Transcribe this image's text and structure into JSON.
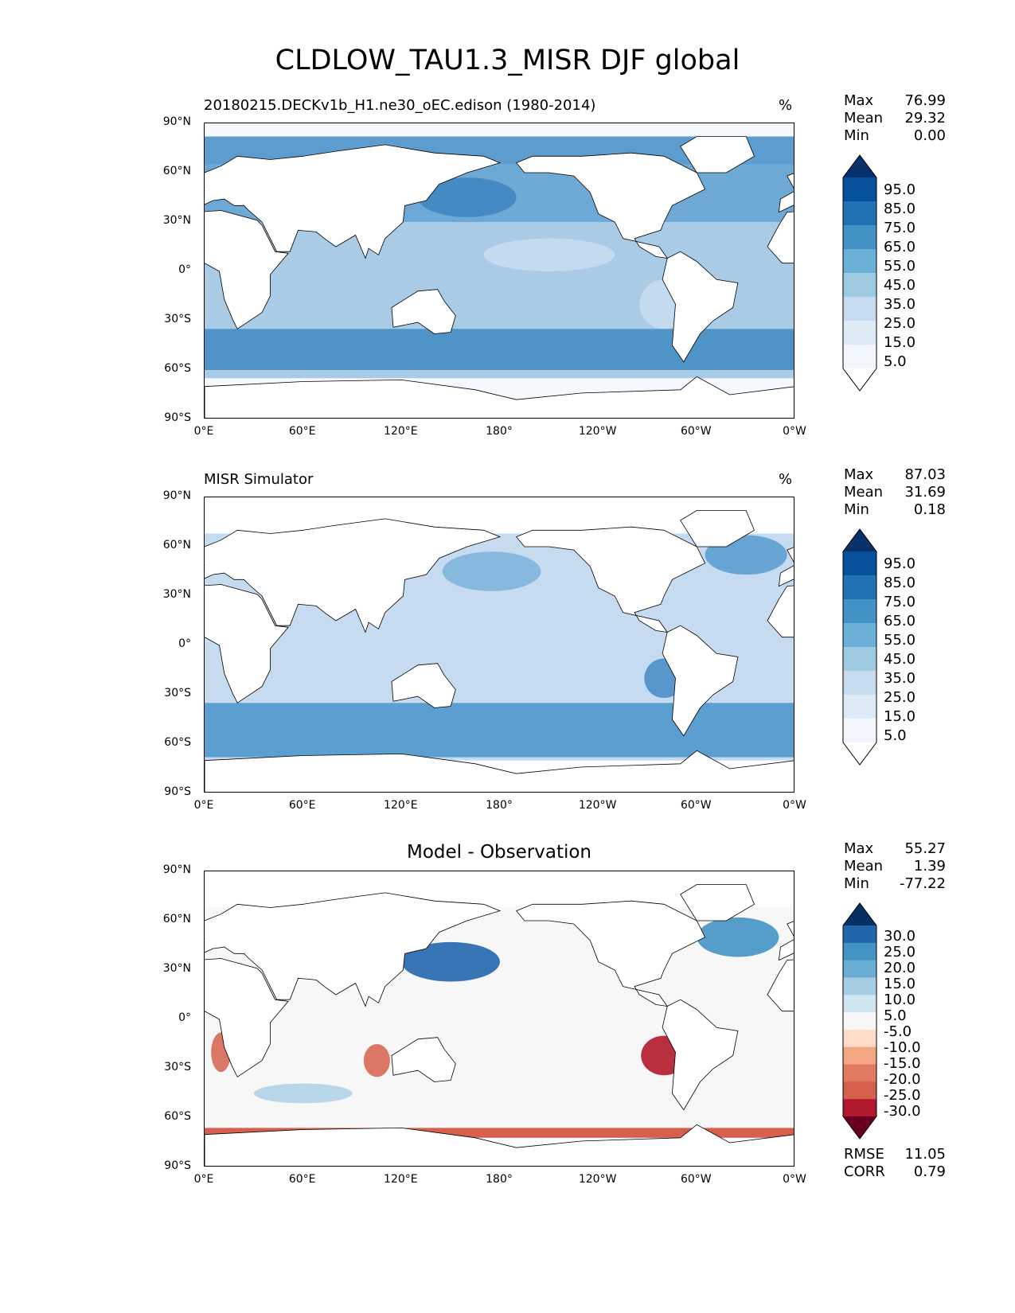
{
  "title": "CLDLOW_TAU1.3_MISR DJF global",
  "axes": {
    "lat_ticks": [
      "90°N",
      "60°N",
      "30°N",
      "0°",
      "30°S",
      "60°S",
      "90°S"
    ],
    "lon_ticks": [
      "0°E",
      "60°E",
      "120°E",
      "180°",
      "120°W",
      "60°W",
      "0°W"
    ]
  },
  "panels": [
    {
      "left_title": "20180215.DECKv1b_H1.ne30_oEC.edison (1980-2014)",
      "center_title": "",
      "units": "%",
      "stats": [
        {
          "label": "Max",
          "value": "76.99"
        },
        {
          "label": "Mean",
          "value": "29.32"
        },
        {
          "label": "Min",
          "value": "0.00"
        }
      ],
      "colorbar": {
        "labels": [
          "95.0",
          "85.0",
          "75.0",
          "65.0",
          "55.0",
          "45.0",
          "35.0",
          "25.0",
          "15.0",
          "5.0"
        ],
        "colors": [
          "#08306b",
          "#08519c",
          "#2171b5",
          "#4292c6",
          "#6baed6",
          "#9ecae1",
          "#c6dbef",
          "#deebf7",
          "#f0f6fc",
          "#ffffff"
        ]
      },
      "ocean_fill": "#6fa9d5"
    },
    {
      "left_title": "MISR Simulator",
      "center_title": "",
      "units": "%",
      "stats": [
        {
          "label": "Max",
          "value": "87.03"
        },
        {
          "label": "Mean",
          "value": "31.69"
        },
        {
          "label": "Min",
          "value": "0.18"
        }
      ],
      "colorbar": {
        "labels": [
          "95.0",
          "85.0",
          "75.0",
          "65.0",
          "55.0",
          "45.0",
          "35.0",
          "25.0",
          "15.0",
          "5.0"
        ],
        "colors": [
          "#08306b",
          "#08519c",
          "#2171b5",
          "#4292c6",
          "#6baed6",
          "#9ecae1",
          "#c6dbef",
          "#deebf7",
          "#f0f6fc",
          "#ffffff"
        ]
      },
      "ocean_fill": "#b7d3ec"
    },
    {
      "left_title": "",
      "center_title": "Model - Observation",
      "units": "",
      "stats": [
        {
          "label": "Max",
          "value": "55.27"
        },
        {
          "label": "Mean",
          "value": "1.39"
        },
        {
          "label": "Min",
          "value": "-77.22"
        }
      ],
      "colorbar": {
        "labels": [
          "30.0",
          "25.0",
          "20.0",
          "15.0",
          "10.0",
          "5.0",
          "-5.0",
          "-10.0",
          "-15.0",
          "-20.0",
          "-25.0",
          "-30.0"
        ],
        "colors": [
          "#053061",
          "#2166ac",
          "#4393c3",
          "#6aaed6",
          "#a6cde3",
          "#d1e5f0",
          "#f7f7f7",
          "#fddbc7",
          "#f4a582",
          "#e07b61",
          "#d6604d",
          "#b2182b",
          "#67001f"
        ]
      },
      "ocean_fill": "#f5f5f5",
      "metrics": [
        {
          "label": "RMSE",
          "value": "11.05"
        },
        {
          "label": "CORR",
          "value": "0.79"
        }
      ]
    }
  ]
}
